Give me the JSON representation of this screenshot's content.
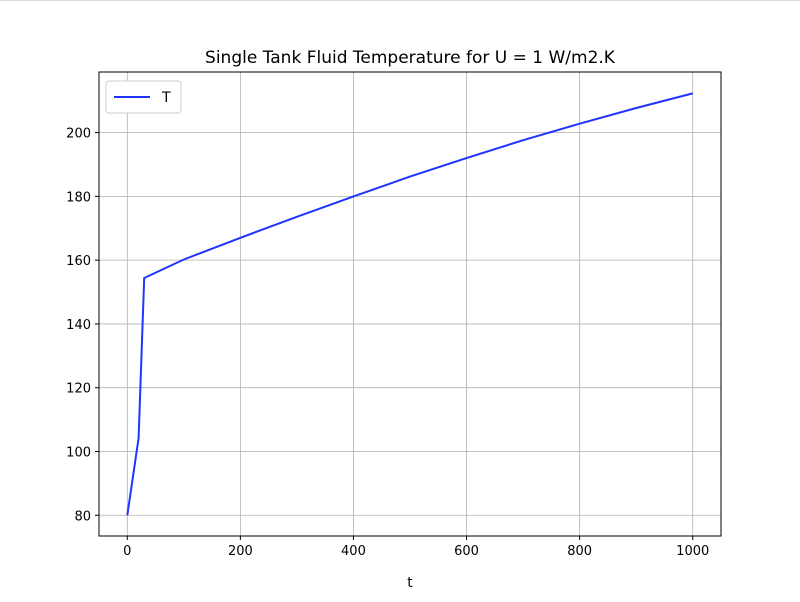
{
  "chart_data": {
    "type": "line",
    "title": "Single Tank Fluid Temperature for U = 1 W/m2.K",
    "xlabel": "t",
    "ylabel": "",
    "xlim": [
      -50,
      1050
    ],
    "ylim": [
      73.5,
      219
    ],
    "xticks": [
      0,
      200,
      400,
      600,
      800,
      1000
    ],
    "yticks": [
      80,
      100,
      120,
      140,
      160,
      180,
      200
    ],
    "grid": true,
    "legend": "top-left",
    "series": [
      {
        "name": "T",
        "color": "#1f35ff",
        "x": [
          0,
          20,
          30,
          100,
          200,
          300,
          400,
          500,
          600,
          700,
          800,
          900,
          1000
        ],
        "y": [
          80,
          104.2,
          154.4,
          160.2,
          167,
          173.6,
          180,
          186.2,
          192,
          197.6,
          202.8,
          207.7,
          212.3
        ]
      }
    ]
  }
}
